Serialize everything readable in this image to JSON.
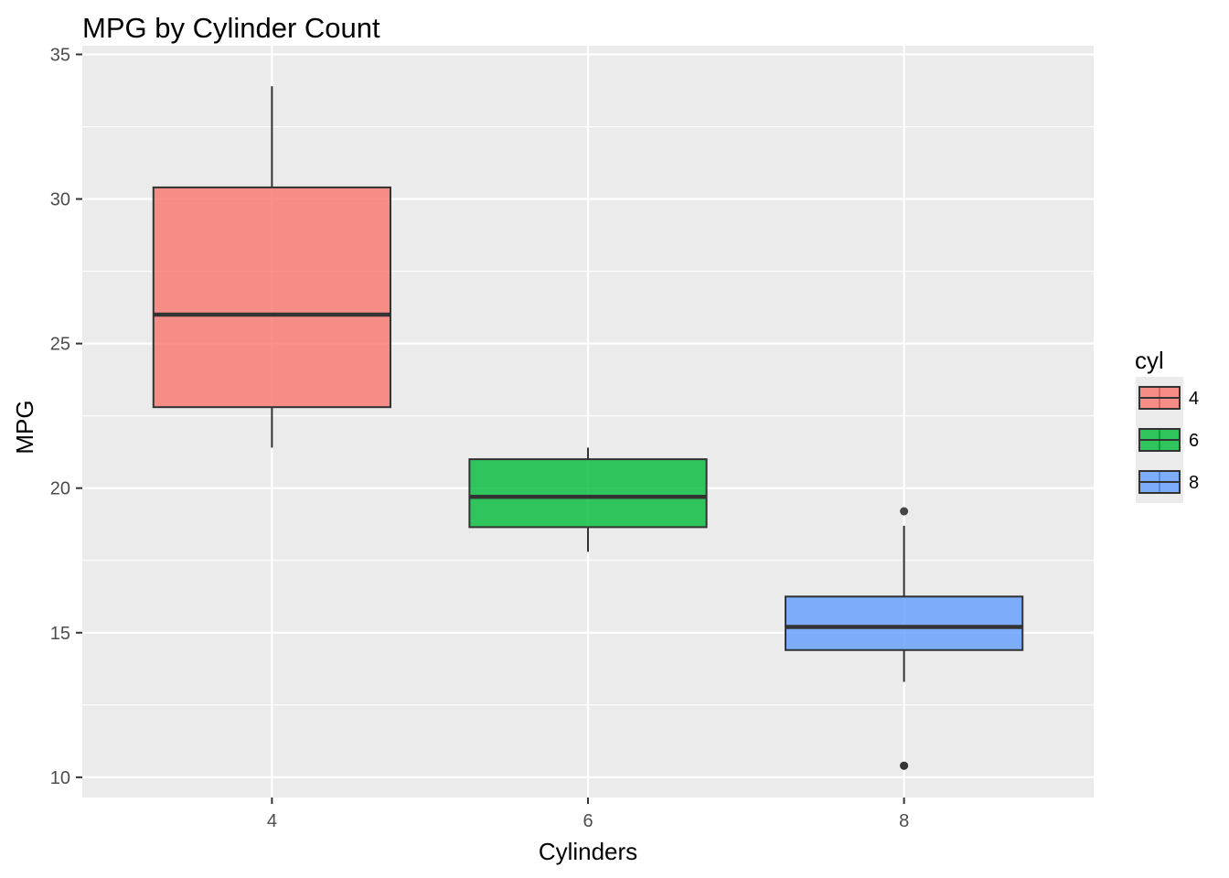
{
  "chart_data": {
    "type": "boxplot",
    "title": "MPG by Cylinder Count",
    "xlabel": "Cylinders",
    "ylabel": "MPG",
    "categories": [
      "4",
      "6",
      "8"
    ],
    "ylim": [
      9.3,
      35.3
    ],
    "yticks": [
      10,
      15,
      20,
      25,
      30,
      35
    ],
    "grid": true,
    "legend": {
      "title": "cyl",
      "placement": "right",
      "entries": [
        "4",
        "6",
        "8"
      ]
    },
    "series": [
      {
        "category": "4",
        "whisker_low": 21.4,
        "q1": 22.8,
        "median": 26.0,
        "q3": 30.4,
        "whisker_high": 33.9,
        "outliers": [],
        "color": "#F8766D"
      },
      {
        "category": "6",
        "whisker_low": 17.8,
        "q1": 18.65,
        "median": 19.7,
        "q3": 21.0,
        "whisker_high": 21.4,
        "outliers": [],
        "color": "#00BA38"
      },
      {
        "category": "8",
        "whisker_low": 13.3,
        "q1": 14.4,
        "median": 15.2,
        "q3": 16.25,
        "whisker_high": 18.7,
        "outliers": [
          19.2,
          10.4,
          10.4
        ],
        "color": "#619CFF"
      }
    ],
    "colors": {
      "panel": "#EBEBEB",
      "grid": "#FFFFFF",
      "box_line": "#333333",
      "tick": "#333333"
    }
  }
}
